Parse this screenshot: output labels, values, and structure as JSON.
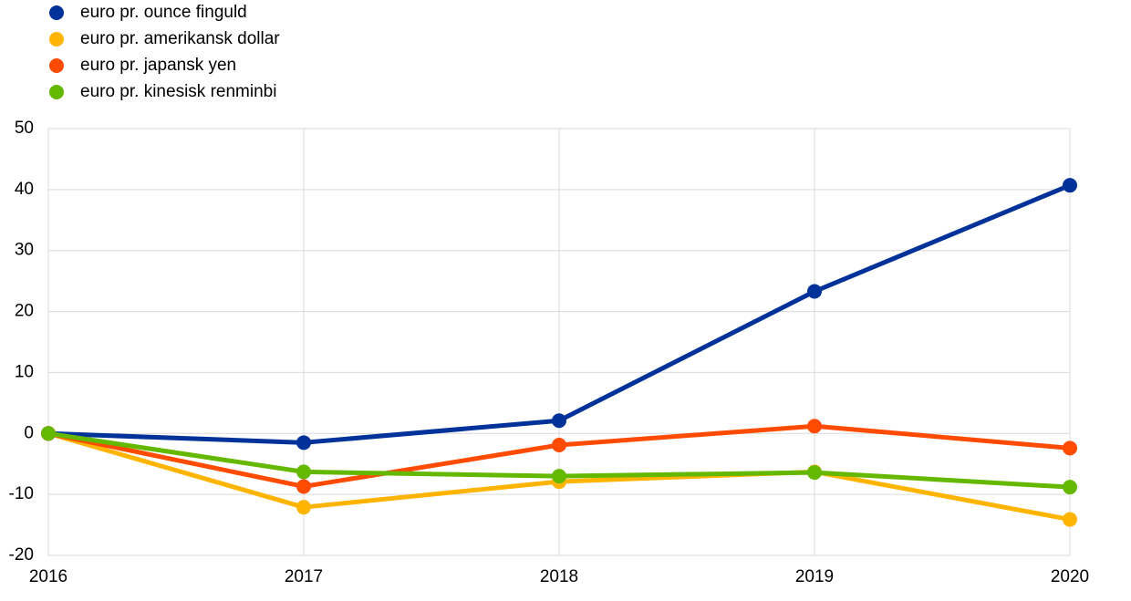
{
  "chart_data": {
    "type": "line",
    "x": [
      2016,
      2017,
      2018,
      2019,
      2020
    ],
    "xlim": [
      2016,
      2020
    ],
    "xticks": [
      2016,
      2017,
      2018,
      2019,
      2020
    ],
    "ylim": [
      -20,
      50
    ],
    "yticks": [
      -20,
      -10,
      0,
      10,
      20,
      30,
      40,
      50
    ],
    "grid": true,
    "legend": "top-left",
    "series": [
      {
        "name": "euro pr. ounce finguld",
        "color": "#003299",
        "values": [
          0,
          -1.5,
          2.1,
          23.3,
          40.7
        ]
      },
      {
        "name": "euro pr. amerikansk dollar",
        "color": "#ffb400",
        "values": [
          0,
          -12.1,
          -7.9,
          -6.3,
          -14.1
        ]
      },
      {
        "name": "euro pr. japansk yen",
        "color": "#ff4b00",
        "values": [
          0,
          -8.7,
          -1.9,
          1.2,
          -2.4
        ]
      },
      {
        "name": "euro pr. kinesisk renminbi",
        "color": "#65b800",
        "values": [
          0,
          -6.3,
          -7.0,
          -6.4,
          -8.8
        ]
      }
    ]
  }
}
